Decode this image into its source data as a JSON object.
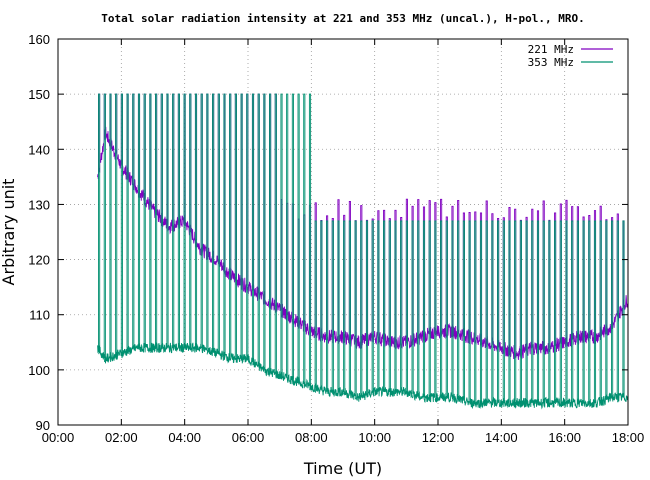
{
  "chart_data": {
    "type": "line",
    "title": "Total solar radiation intensity at 221 and 353 MHz (uncal.), H-pol., MRO.",
    "xlabel": "Time (UT)",
    "ylabel": "Arbitrary unit",
    "xlim": [
      "00:00",
      "18:00"
    ],
    "ylim": [
      90,
      160
    ],
    "x_ticks": [
      "00:00",
      "02:00",
      "04:00",
      "06:00",
      "08:00",
      "10:00",
      "12:00",
      "14:00",
      "16:00",
      "18:00"
    ],
    "y_ticks": [
      90,
      100,
      110,
      120,
      130,
      140,
      150,
      160
    ],
    "grid": true,
    "legend_position": "top-right",
    "series": [
      {
        "name": "221 MHz",
        "color": "#8000c0",
        "x": [
          "01:15",
          "01:30",
          "02:00",
          "02:30",
          "03:00",
          "03:30",
          "04:00",
          "04:30",
          "05:00",
          "05:30",
          "06:00",
          "06:30",
          "07:00",
          "07:30",
          "08:00",
          "08:30",
          "09:00",
          "09:30",
          "10:00",
          "10:30",
          "11:00",
          "11:30",
          "12:00",
          "12:30",
          "13:00",
          "13:30",
          "14:00",
          "14:30",
          "15:00",
          "15:30",
          "16:00",
          "16:30",
          "17:00",
          "17:30",
          "18:00"
        ],
        "values": [
          135,
          143,
          137,
          133,
          129,
          126,
          127,
          122,
          120,
          117,
          115,
          113,
          111,
          109,
          107,
          106,
          106,
          105,
          106,
          105,
          105,
          106,
          107,
          107,
          106,
          105,
          104,
          103,
          104,
          104,
          105,
          106,
          106,
          108,
          113
        ]
      },
      {
        "name": "353 MHz",
        "color": "#009070",
        "x": [
          "01:15",
          "01:30",
          "02:00",
          "02:30",
          "03:00",
          "03:30",
          "04:00",
          "04:30",
          "05:00",
          "05:30",
          "06:00",
          "06:30",
          "07:00",
          "07:30",
          "08:00",
          "08:30",
          "09:00",
          "09:30",
          "10:00",
          "10:30",
          "11:00",
          "11:30",
          "12:00",
          "12:30",
          "13:00",
          "13:30",
          "14:00",
          "14:30",
          "15:00",
          "15:30",
          "16:00",
          "16:30",
          "17:00",
          "17:30",
          "18:00"
        ],
        "values": [
          104,
          102,
          103,
          104,
          104,
          104,
          104,
          104,
          103,
          102,
          102,
          100,
          99,
          98,
          97,
          96,
          96,
          95,
          96,
          96,
          96,
          95,
          95,
          95,
          94,
          94,
          94,
          94,
          94,
          94,
          94,
          94,
          94,
          95,
          95
        ]
      }
    ]
  }
}
